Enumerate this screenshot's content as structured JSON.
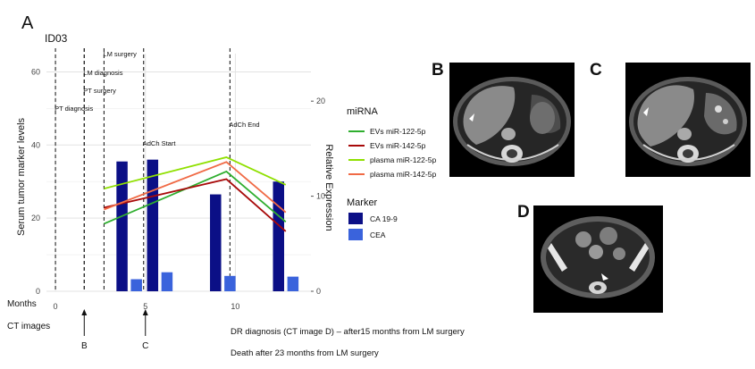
{
  "panel_letter": "A",
  "patient_id": "ID03",
  "chart_data": {
    "type": "bar+line",
    "ylabel_left": "Serum tumor marker levels",
    "ylabel_right": "Relative Expression",
    "xlabel": "Months",
    "x_ticks": [
      0,
      5,
      10
    ],
    "ylim_left": [
      0,
      65
    ],
    "y_ticks_left": [
      0,
      20,
      40,
      60
    ],
    "ylim_right": [
      0,
      25
    ],
    "y_ticks_right": [
      0,
      10,
      20
    ],
    "xlim": [
      -0.5,
      14.2
    ],
    "grid": true,
    "events": [
      {
        "month": 0,
        "label": "PT diagnosis"
      },
      {
        "month": 1.6,
        "label": "LM diagnosis"
      },
      {
        "month": 1.6,
        "label": "PT surgery"
      },
      {
        "month": 2.7,
        "label": "LM surgery"
      },
      {
        "month": 4.9,
        "label": "AdCh Start"
      },
      {
        "month": 9.7,
        "label": "AdCh End"
      }
    ],
    "bar_legend_title": "Marker",
    "bar_series": [
      {
        "name": "CA 19-9",
        "color": "#0b0f86",
        "x": [
          3.7,
          5.4,
          8.9,
          12.4
        ],
        "values": [
          35.5,
          36,
          26.5,
          30
        ]
      },
      {
        "name": "CEA",
        "color": "#3a63dc",
        "x": [
          4.5,
          6.2,
          9.7,
          13.2
        ],
        "values": [
          3.3,
          5.2,
          4.2,
          4
        ]
      }
    ],
    "line_legend_title": "miRNA",
    "line_series": [
      {
        "name": "EVs miR-122-5p",
        "color": "#2fae2f",
        "x": [
          2.7,
          9.5,
          12.8
        ],
        "values": [
          7.1,
          12.6,
          7.3
        ]
      },
      {
        "name": "EVs miR-142-5p",
        "color": "#a80a0a",
        "x": [
          2.7,
          9.5,
          12.8
        ],
        "values": [
          8.8,
          11.8,
          6.3
        ]
      },
      {
        "name": "plasma miR-122-5p",
        "color": "#8fe000",
        "x": [
          2.7,
          9.5,
          12.8
        ],
        "values": [
          10.8,
          14.1,
          11.2
        ]
      },
      {
        "name": "plasma miR-142-5p",
        "color": "#f06a45",
        "x": [
          2.7,
          9.5,
          12.8
        ],
        "values": [
          8.6,
          13.6,
          8.3
        ]
      }
    ],
    "ct_row_label": "CT  images",
    "ct_markers": [
      {
        "month": 1.6,
        "label": "B"
      },
      {
        "month": 5,
        "label": "C"
      }
    ]
  },
  "notes": [
    "DR diagnosis (CT image D) – after15 months from LM surgery",
    "Death after 23 months from LM surgery"
  ],
  "ct_images": [
    {
      "label": "B",
      "description": "CT scan B"
    },
    {
      "label": "C",
      "description": "CT scan C"
    },
    {
      "label": "D",
      "description": "CT scan D"
    }
  ]
}
